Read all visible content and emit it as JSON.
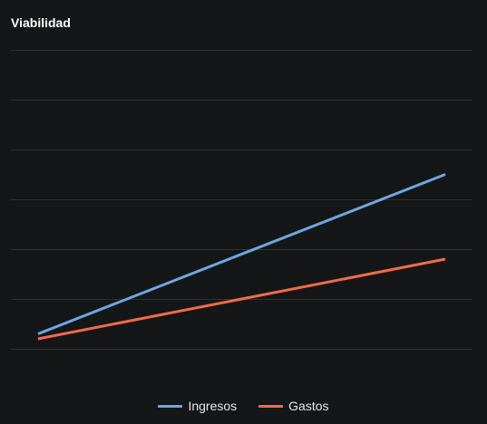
{
  "title": "Viabilidad",
  "colors": {
    "background": "#151617",
    "grid": "#2e3032",
    "ingresos": "#6ea6e6",
    "gastos": "#f26b4a"
  },
  "chart_data": {
    "type": "line",
    "title": "Viabilidad",
    "xlabel": "",
    "ylabel": "",
    "grid": true,
    "legend_position": "bottom",
    "x": [
      0,
      1
    ],
    "ylim": [
      0,
      6
    ],
    "series": [
      {
        "name": "Ingresos",
        "color": "#6ea6e6",
        "values": [
          0.3,
          3.5
        ]
      },
      {
        "name": "Gastos",
        "color": "#f26b4a",
        "values": [
          0.2,
          1.8
        ]
      }
    ]
  },
  "legend": {
    "items": [
      {
        "label": "Ingresos",
        "color": "#6ea6e6"
      },
      {
        "label": "Gastos",
        "color": "#f26b4a"
      }
    ]
  }
}
